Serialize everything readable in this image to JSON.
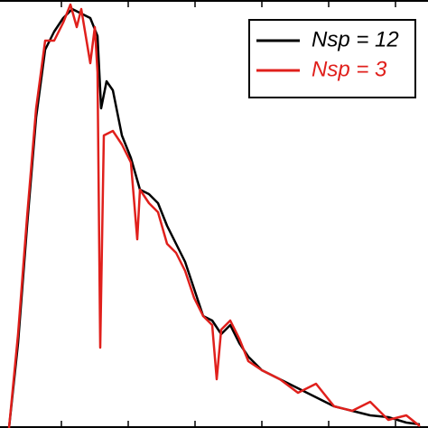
{
  "chart_data": {
    "type": "line",
    "xlim": [
      0,
      474
    ],
    "ylim": [
      0,
      474
    ],
    "xticks": [
      68,
      142,
      216,
      290,
      364,
      438
    ],
    "legend": "upper right",
    "series": [
      {
        "name": "Nsp = 12",
        "color": "#000000",
        "x": [
          10,
          20,
          30,
          40,
          50,
          60,
          70,
          80,
          90,
          100,
          108,
          112,
          118,
          125,
          135,
          145,
          155,
          165,
          175,
          185,
          195,
          205,
          215,
          225,
          235,
          245,
          255,
          265,
          275,
          290,
          310,
          330,
          350,
          370,
          390,
          410,
          430,
          450,
          465
        ],
        "values": [
          0,
          94,
          224,
          344,
          419,
          439,
          454,
          464,
          459,
          454,
          434,
          354,
          384,
          374,
          324,
          299,
          264,
          259,
          249,
          224,
          204,
          184,
          154,
          124,
          119,
          104,
          114,
          94,
          79,
          64,
          54,
          44,
          34,
          24,
          19,
          14,
          12,
          6,
          4
        ]
      },
      {
        "name": "Nsp = 3",
        "color": "#e0201c",
        "x": [
          10,
          20,
          30,
          40,
          50,
          60,
          70,
          78,
          85,
          90,
          100,
          105,
          108,
          111,
          115,
          125,
          135,
          145,
          152,
          155,
          165,
          175,
          185,
          195,
          205,
          215,
          225,
          235,
          240,
          245,
          255,
          265,
          275,
          290,
          310,
          330,
          350,
          370,
          390,
          410,
          430,
          450,
          465
        ],
        "values": [
          0,
          104,
          234,
          354,
          429,
          429,
          449,
          469,
          444,
          464,
          404,
          444,
          394,
          89,
          324,
          329,
          314,
          294,
          209,
          264,
          249,
          239,
          204,
          194,
          174,
          144,
          124,
          114,
          54,
          109,
          119,
          99,
          74,
          64,
          54,
          39,
          49,
          24,
          19,
          29,
          9,
          14,
          2
        ]
      }
    ]
  }
}
